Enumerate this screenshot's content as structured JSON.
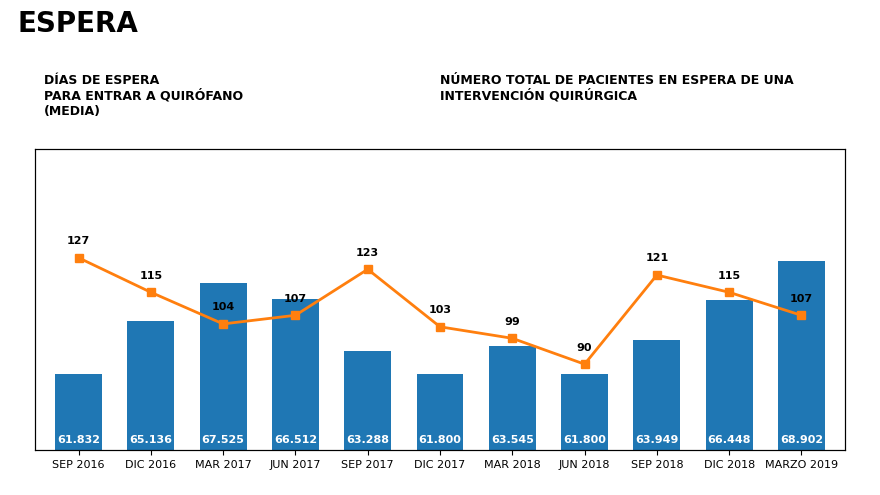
{
  "chart_data": {
    "type": "bar",
    "title": "ESPERA",
    "categories": [
      "SEP 2016",
      "DIC 2016",
      "MAR 2017",
      "JUN 2017",
      "SEP 2017",
      "DIC 2017",
      "MAR 2018",
      "JUN 2018",
      "SEP 2018",
      "DIC 2018",
      "MARZO 2019"
    ],
    "series": [
      {
        "type": "bar",
        "color": "#1f77b4",
        "values": [
          61832,
          65136,
          67525,
          66512,
          63288,
          61800,
          63545,
          61800,
          63949,
          66448,
          68902
        ],
        "value_labels": [
          "61.832",
          "65.136",
          "67.525",
          "66.512",
          "63.288",
          "61.800",
          "63.545",
          "61.800",
          "63.949",
          "66.448",
          "68.902"
        ],
        "data_labels": true
      },
      {
        "type": "line",
        "axis": "y2",
        "color": "#ff7f0e",
        "marker": "square",
        "values": [
          127,
          115,
          104,
          107,
          123,
          103,
          99,
          90,
          121,
          115,
          107
        ],
        "data_labels": true
      }
    ],
    "ylim": [
      57000,
      76000
    ],
    "y2lim": [
      60,
      165
    ],
    "tick_labels": "x",
    "grid": false,
    "annotations": [
      "DÍAS DE ESPERA",
      "PARA ENTRAR A QUIRÓFANO",
      "(MEDIA)",
      "NÚMERO TOTAL DE PACIENTES EN ESPERA DE UNA",
      "INTERVENCIÓN QUIRÚRGICA"
    ]
  }
}
